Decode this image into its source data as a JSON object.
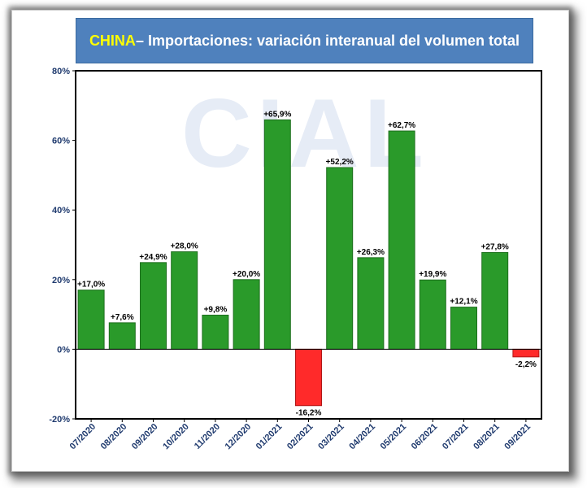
{
  "title": {
    "highlight": "CHINA",
    "rest": " – Importaciones: variación interanual del volumen total"
  },
  "watermark": "CIAL",
  "colors": {
    "positive": "#2a9a2a",
    "positive_edge": "#1d6e1d",
    "negative": "#ff2a2a",
    "negative_edge": "#b01515",
    "title_bg": "#4f81bd",
    "title_highlight": "#ffff00",
    "axis_text": "#1f3a6e"
  },
  "chart_data": {
    "type": "bar",
    "title": "CHINA – Importaciones: variación interanual del volumen total",
    "xlabel": "",
    "ylabel": "",
    "categories": [
      "07/2020",
      "08/2020",
      "09/2020",
      "10/2020",
      "11/2020",
      "12/2020",
      "01/2021",
      "02/2021",
      "03/2021",
      "04/2021",
      "05/2021",
      "06/2021",
      "07/2021",
      "08/2021",
      "09/2021"
    ],
    "values": [
      17.0,
      7.6,
      24.9,
      28.0,
      9.8,
      20.0,
      65.9,
      -16.2,
      52.2,
      26.3,
      62.7,
      19.9,
      12.1,
      27.8,
      -2.2
    ],
    "data_labels": [
      "+17,0%",
      "+7,6%",
      "+24,9%",
      "+28,0%",
      "+9,8%",
      "+20,0%",
      "+65,9%",
      "-16,2%",
      "+52,2%",
      "+26,3%",
      "+62,7%",
      "+19,9%",
      "+12,1%",
      "+27,8%",
      "-2,2%"
    ],
    "ylim": [
      -20,
      80
    ],
    "yticks": [
      -20,
      0,
      20,
      40,
      60,
      80
    ],
    "ytick_labels": [
      "-20%",
      "0%",
      "20%",
      "40%",
      "60%",
      "80%"
    ],
    "grid": false,
    "legend": "none"
  }
}
